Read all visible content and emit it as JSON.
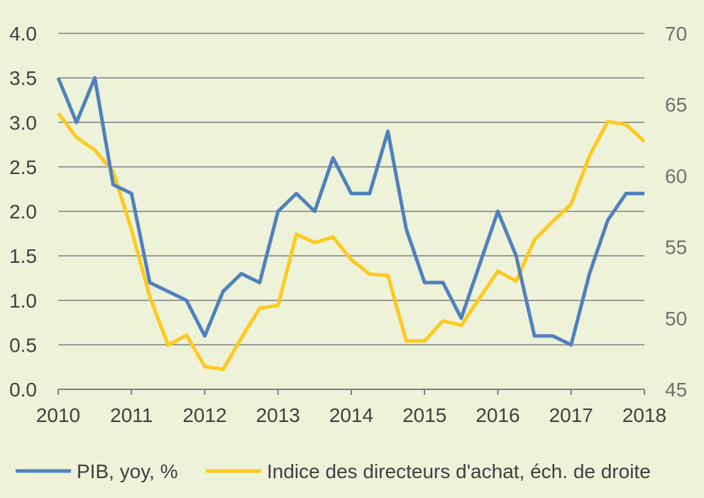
{
  "chart_data": {
    "type": "line",
    "x_ticks": [
      "2010",
      "2011",
      "2012",
      "2013",
      "2014",
      "2015",
      "2016",
      "2017",
      "2018"
    ],
    "xlim": [
      2010,
      2018
    ],
    "ylim_left": [
      0,
      4
    ],
    "y_ticks_left": [
      "0.0",
      "0.5",
      "1.0",
      "1.5",
      "2.0",
      "2.5",
      "3.0",
      "3.5",
      "4.0"
    ],
    "ylim_right": [
      45,
      70
    ],
    "y_ticks_right": [
      "45",
      "50",
      "55",
      "60",
      "65",
      "70"
    ],
    "grid": true,
    "legend_position": "bottom",
    "series": [
      {
        "name": "PIB, yoy, %",
        "axis": "left",
        "color": "#4f81bd",
        "points": [
          [
            2010.0,
            3.5
          ],
          [
            2010.25,
            3.0
          ],
          [
            2010.5,
            3.5
          ],
          [
            2010.75,
            2.3
          ],
          [
            2011.0,
            2.2
          ],
          [
            2011.25,
            1.2
          ],
          [
            2011.5,
            1.1
          ],
          [
            2011.75,
            1.0
          ],
          [
            2012.0,
            0.6
          ],
          [
            2012.25,
            1.1
          ],
          [
            2012.5,
            1.3
          ],
          [
            2012.75,
            1.2
          ],
          [
            2013.0,
            2.0
          ],
          [
            2013.25,
            2.2
          ],
          [
            2013.5,
            2.0
          ],
          [
            2013.75,
            2.6
          ],
          [
            2014.0,
            2.2
          ],
          [
            2014.25,
            2.2
          ],
          [
            2014.5,
            2.9
          ],
          [
            2014.75,
            1.8
          ],
          [
            2015.0,
            1.2
          ],
          [
            2015.25,
            1.2
          ],
          [
            2015.5,
            0.8
          ],
          [
            2015.75,
            1.4
          ],
          [
            2016.0,
            2.0
          ],
          [
            2016.25,
            1.5
          ],
          [
            2016.5,
            0.6
          ],
          [
            2016.75,
            0.6
          ],
          [
            2017.0,
            0.5
          ],
          [
            2017.25,
            1.3
          ],
          [
            2017.5,
            1.9
          ],
          [
            2017.75,
            2.2
          ],
          [
            2018.0,
            2.2
          ]
        ]
      },
      {
        "name": "Indice des directeurs d'achat, éch. de droite",
        "axis": "right",
        "color": "#ffc91f",
        "points": [
          [
            2010.0,
            64.4
          ],
          [
            2010.25,
            62.7
          ],
          [
            2010.5,
            61.8
          ],
          [
            2010.75,
            60.3
          ],
          [
            2011.0,
            56.2
          ],
          [
            2011.25,
            51.5
          ],
          [
            2011.5,
            48.1
          ],
          [
            2011.75,
            48.8
          ],
          [
            2012.0,
            46.6
          ],
          [
            2012.25,
            46.4
          ],
          [
            2012.5,
            48.6
          ],
          [
            2012.75,
            50.7
          ],
          [
            2013.0,
            50.9
          ],
          [
            2013.25,
            55.9
          ],
          [
            2013.5,
            55.3
          ],
          [
            2013.75,
            55.7
          ],
          [
            2014.0,
            54.1
          ],
          [
            2014.25,
            53.1
          ],
          [
            2014.5,
            53.0
          ],
          [
            2014.75,
            48.4
          ],
          [
            2015.0,
            48.4
          ],
          [
            2015.25,
            49.8
          ],
          [
            2015.5,
            49.5
          ],
          [
            2015.75,
            51.4
          ],
          [
            2016.0,
            53.3
          ],
          [
            2016.25,
            52.6
          ],
          [
            2016.5,
            55.5
          ],
          [
            2016.75,
            56.8
          ],
          [
            2017.0,
            58.0
          ],
          [
            2017.25,
            61.4
          ],
          [
            2017.5,
            63.8
          ],
          [
            2017.75,
            63.6
          ],
          [
            2018.0,
            62.4
          ]
        ]
      }
    ]
  },
  "legend": {
    "items": [
      {
        "label": "PIB, yoy, %",
        "color": "#4f81bd"
      },
      {
        "label": "Indice des directeurs d'achat, éch. de droite",
        "color": "#ffc91f"
      }
    ]
  },
  "colors": {
    "background": "#eef2d9",
    "grid": "#7f7f7f",
    "axis": "#7f7f7f"
  }
}
